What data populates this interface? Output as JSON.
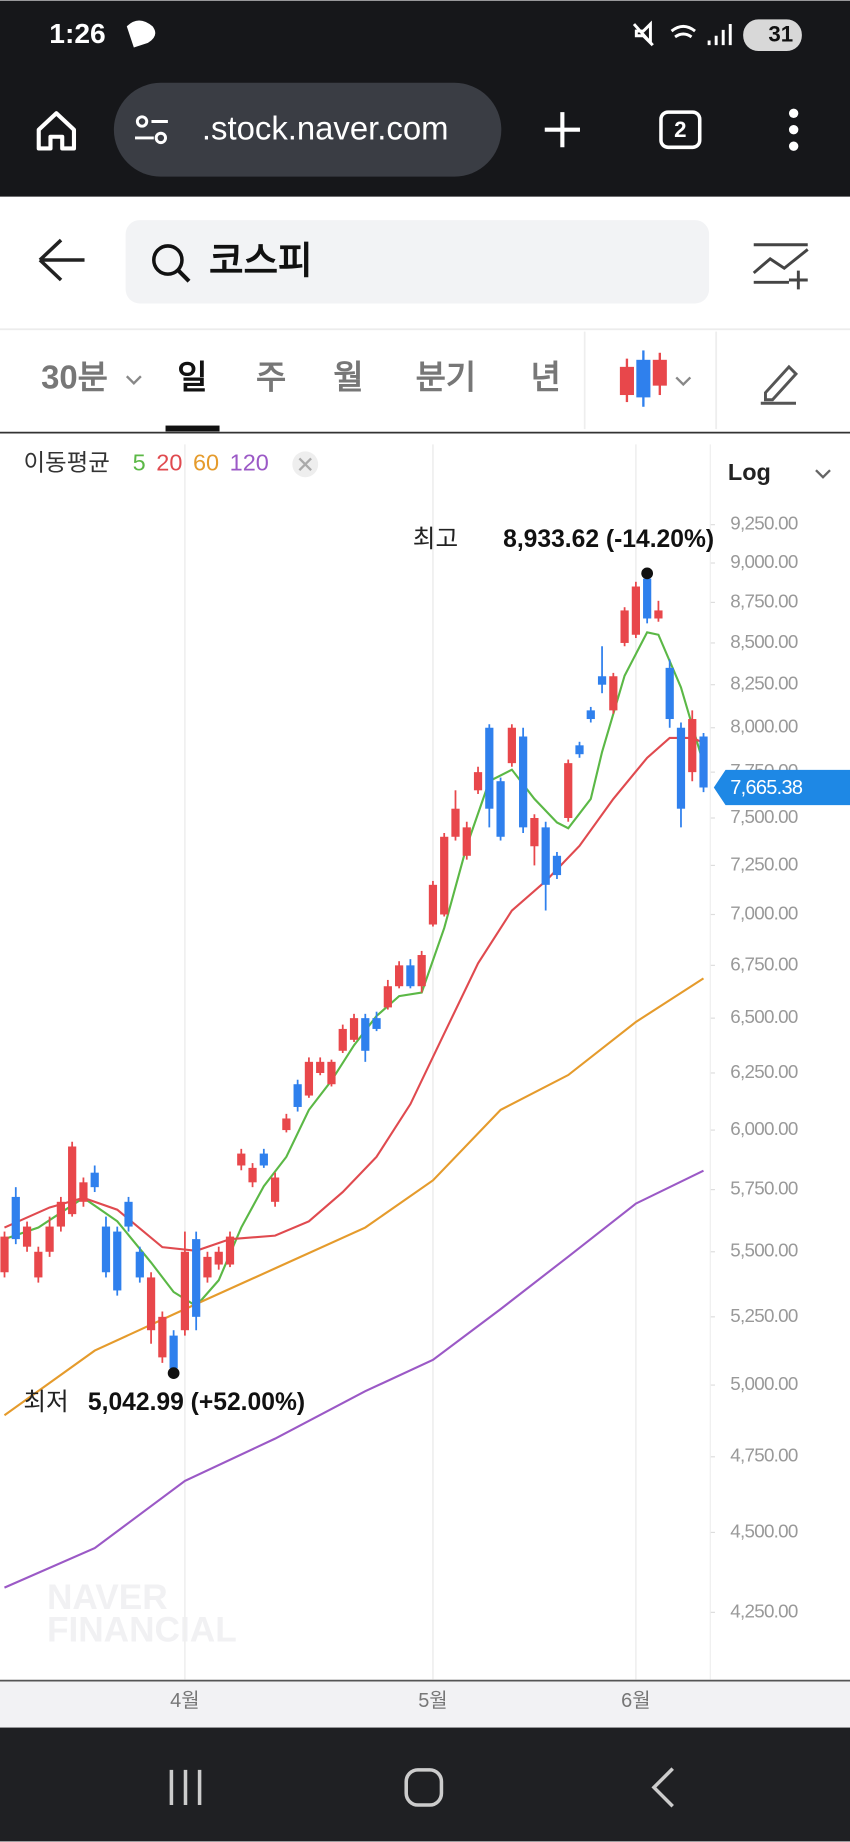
{
  "status_bar": {
    "time": "1:26",
    "battery": "31"
  },
  "browser": {
    "url": ".stock.naver.com",
    "tab_count": "2"
  },
  "search": {
    "query": "코스피"
  },
  "period_tabs": [
    "30분",
    "일",
    "주",
    "월",
    "분기",
    "년"
  ],
  "selected_tab": 1,
  "chart_data": {
    "type": "candlestick",
    "legend_title": "이동평균",
    "scale_label": "Log",
    "log_scale": true,
    "grid": true,
    "watermark": [
      "NAVER",
      "FINANCIAL"
    ],
    "up_color": "#e8474b",
    "down_color": "#2f80ed",
    "x": [
      0,
      1,
      2,
      3,
      4,
      5,
      6,
      7,
      8,
      9,
      10,
      11,
      12,
      13,
      14,
      15,
      16,
      17,
      18,
      19,
      20,
      21,
      22,
      23,
      24,
      25,
      26,
      27,
      28,
      29,
      30,
      31,
      32,
      33,
      34,
      35,
      36,
      37,
      38,
      39,
      40,
      41,
      42,
      43,
      44,
      45,
      46,
      47,
      48,
      49,
      50,
      51,
      52,
      53,
      54,
      55,
      56,
      57,
      58,
      59,
      60,
      61,
      62
    ],
    "open": [
      5420,
      5720,
      5520,
      5400,
      5500,
      5600,
      5650,
      5700,
      5820,
      5600,
      5580,
      5700,
      5500,
      5200,
      5100,
      5180,
      5200,
      5550,
      5400,
      5450,
      5450,
      5850,
      5780,
      5900,
      5700,
      6000,
      6200,
      6150,
      6250,
      6200,
      6350,
      6400,
      6500,
      6500,
      6550,
      6650,
      6750,
      6650,
      6950,
      7000,
      7400,
      7300,
      7650,
      8000,
      7700,
      7800,
      7950,
      7350,
      7450,
      7300,
      7500,
      7900,
      8100,
      8300,
      8100,
      8500,
      8550,
      8900,
      8650,
      8350,
      8000,
      7750,
      7950
    ],
    "high": [
      5580,
      5760,
      5620,
      5520,
      5640,
      5720,
      5950,
      5800,
      5850,
      5640,
      5600,
      5720,
      5520,
      5420,
      5270,
      5200,
      5580,
      5580,
      5500,
      5520,
      5580,
      5920,
      5860,
      5920,
      5820,
      6070,
      6220,
      6320,
      6320,
      6310,
      6470,
      6520,
      6520,
      6530,
      6680,
      6770,
      6780,
      6820,
      7170,
      7420,
      7650,
      7480,
      7780,
      8020,
      7720,
      8020,
      8000,
      7520,
      7480,
      7320,
      7820,
      7920,
      8120,
      8480,
      8320,
      8720,
      8880,
      8933.62,
      8760,
      8400,
      8030,
      8100,
      7970
    ],
    "low": [
      5400,
      5530,
      5500,
      5380,
      5480,
      5580,
      5640,
      5680,
      5740,
      5400,
      5330,
      5580,
      5380,
      5150,
      5080,
      5042.99,
      5180,
      5200,
      5380,
      5430,
      5440,
      5830,
      5760,
      5840,
      5680,
      5990,
      6080,
      6140,
      6240,
      6190,
      6340,
      6390,
      6300,
      6440,
      6540,
      6640,
      6640,
      6620,
      6940,
      6990,
      7380,
      7280,
      7630,
      7450,
      7380,
      7780,
      7420,
      7250,
      7020,
      7180,
      7480,
      7830,
      8030,
      8200,
      8080,
      8480,
      8530,
      8620,
      8630,
      8000,
      7450,
      7700,
      7640
    ],
    "close": [
      5560,
      5550,
      5600,
      5500,
      5600,
      5700,
      5930,
      5780,
      5760,
      5420,
      5350,
      5600,
      5400,
      5400,
      5250,
      5060,
      5500,
      5250,
      5480,
      5500,
      5560,
      5900,
      5840,
      5850,
      5800,
      6050,
      6100,
      6300,
      6300,
      6300,
      6450,
      6500,
      6350,
      6450,
      6650,
      6750,
      6650,
      6800,
      7150,
      7400,
      7550,
      7450,
      7750,
      7550,
      7400,
      8000,
      7450,
      7500,
      7150,
      7200,
      7800,
      7850,
      8050,
      8250,
      8300,
      8700,
      8850,
      8650,
      8700,
      8050,
      7550,
      8050,
      7665.38
    ],
    "last_label": "7,665.38",
    "series": [
      {
        "name": "5",
        "color": "#5bb846",
        "x": [
          0,
          3,
          7,
          10,
          13,
          15,
          17,
          19,
          21,
          23,
          25,
          27,
          29,
          31,
          33,
          35,
          37,
          39,
          41,
          43,
          45,
          47,
          49,
          50,
          52,
          53,
          55,
          57,
          58,
          60,
          62
        ],
        "values": [
          5550,
          5596,
          5716,
          5621,
          5458,
          5344,
          5291,
          5389,
          5596,
          5764,
          5886,
          6087,
          6216,
          6375,
          6510,
          6603,
          6620,
          6933,
          7352,
          7700,
          7764,
          7603,
          7476,
          7445,
          7603,
          7862,
          8303,
          8565,
          8550,
          8234,
          7797
        ]
      },
      {
        "name": "20",
        "color": "#e04a4f",
        "x": [
          0,
          4,
          7,
          10,
          14,
          17,
          20,
          24,
          27,
          30,
          33,
          36,
          39,
          42,
          45,
          48,
          51,
          54,
          57,
          59,
          61,
          62
        ],
        "values": [
          5596,
          5677,
          5716,
          5668,
          5518,
          5504,
          5550,
          5564,
          5621,
          5740,
          5886,
          6113,
          6429,
          6760,
          7020,
          7169,
          7352,
          7603,
          7830,
          7942,
          7942,
          7915
        ]
      },
      {
        "name": "60",
        "color": "#e59b2c",
        "x": [
          0,
          8,
          16,
          24,
          32,
          38,
          44,
          50,
          56,
          62
        ],
        "values": [
          4893,
          5125,
          5279,
          5435,
          5596,
          5788,
          6087,
          6241,
          6482,
          6687
        ]
      },
      {
        "name": "120",
        "color": "#9b59c6",
        "x": [
          0,
          8,
          16,
          24,
          32,
          38,
          44,
          50,
          56,
          62
        ],
        "values": [
          4326,
          4450,
          4669,
          4812,
          4978,
          5091,
          5279,
          5481,
          5693,
          5828
        ]
      }
    ],
    "high_marker": {
      "label": "최고",
      "x": 57,
      "value": 8933.62,
      "value_label": "8,933.62 (-14.20%)"
    },
    "low_marker": {
      "label": "최저",
      "x": 15,
      "value": 5042.99,
      "value_label": "5,042.99 (+52.00%)"
    },
    "xlim": [
      -0.4,
      62.6
    ],
    "ylim": [
      4051,
      9797
    ],
    "xticks": [
      {
        "value": 16,
        "label": "4월"
      },
      {
        "value": 38,
        "label": "5월"
      },
      {
        "value": 56,
        "label": "6월"
      }
    ],
    "yticks": [
      {
        "value": 9250,
        "label": "9,250.00"
      },
      {
        "value": 9000,
        "label": "9,000.00"
      },
      {
        "value": 8750,
        "label": "8,750.00"
      },
      {
        "value": 8500,
        "label": "8,500.00"
      },
      {
        "value": 8250,
        "label": "8,250.00"
      },
      {
        "value": 8000,
        "label": "8,000.00"
      },
      {
        "value": 7750,
        "label": "7,750.00"
      },
      {
        "value": 7500,
        "label": "7,500.00"
      },
      {
        "value": 7250,
        "label": "7,250.00"
      },
      {
        "value": 7000,
        "label": "7,000.00"
      },
      {
        "value": 6750,
        "label": "6,750.00"
      },
      {
        "value": 6500,
        "label": "6,500.00"
      },
      {
        "value": 6250,
        "label": "6,250.00"
      },
      {
        "value": 6000,
        "label": "6,000.00"
      },
      {
        "value": 5750,
        "label": "5,750.00"
      },
      {
        "value": 5500,
        "label": "5,500.00"
      },
      {
        "value": 5250,
        "label": "5,250.00"
      },
      {
        "value": 5000,
        "label": "5,000.00"
      },
      {
        "value": 4750,
        "label": "4,750.00"
      },
      {
        "value": 4500,
        "label": "4,500.00"
      },
      {
        "value": 4250,
        "label": "4,250.00"
      }
    ]
  }
}
